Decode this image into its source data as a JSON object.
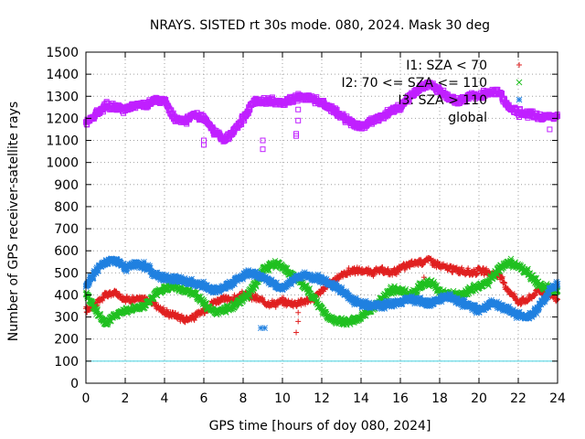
{
  "chart_data": {
    "type": "scatter",
    "title": "NRAYS. SISTED rt 30s mode. 080, 2024. Mask 30 deg",
    "xlabel": "GPS time [hours of doy 080, 2024]",
    "ylabel": "Number of GPS receiver-satellite rays",
    "xlim": [
      0,
      24
    ],
    "ylim": [
      0,
      1500
    ],
    "xticks": [
      "0",
      "2",
      "4",
      "6",
      "8",
      "10",
      "12",
      "14",
      "16",
      "18",
      "20",
      "22",
      "24"
    ],
    "yticks": [
      "0",
      "100",
      "200",
      "300",
      "400",
      "500",
      "600",
      "700",
      "800",
      "900",
      "1000",
      "1100",
      "1200",
      "1300",
      "1400",
      "1500"
    ],
    "grid": true,
    "legend_position": "top-right",
    "threshold_line": {
      "y": 100,
      "color": "#40d0e0"
    },
    "series": [
      {
        "name": "I1: SZA < 70",
        "marker": "+",
        "color": "#e02020",
        "x": [
          0,
          0.5,
          1,
          1.5,
          2,
          2.5,
          3,
          3.5,
          4,
          4.5,
          5,
          5.5,
          6,
          6.5,
          7,
          7.5,
          8,
          8.5,
          9,
          9.5,
          10,
          10.5,
          11,
          11.5,
          12,
          12.5,
          13,
          13.5,
          14,
          14.5,
          15,
          15.5,
          16,
          16.5,
          17,
          17.5,
          18,
          18.5,
          19,
          19.5,
          20,
          20.5,
          21,
          21.5,
          22,
          22.5,
          23,
          23.5,
          24
        ],
        "y": [
          330,
          360,
          400,
          410,
          380,
          380,
          380,
          360,
          320,
          310,
          290,
          300,
          330,
          370,
          380,
          380,
          400,
          390,
          370,
          360,
          370,
          360,
          370,
          380,
          420,
          460,
          490,
          510,
          510,
          500,
          510,
          500,
          520,
          540,
          550,
          560,
          530,
          520,
          510,
          500,
          510,
          500,
          490,
          420,
          370,
          380,
          420,
          410,
          380
        ]
      },
      {
        "name": "I2: 70 <= SZA <= 110",
        "marker": "x",
        "color": "#20c020",
        "x": [
          0,
          0.5,
          1,
          1.5,
          2,
          2.5,
          3,
          3.5,
          4,
          4.5,
          5,
          5.5,
          6,
          6.5,
          7,
          7.5,
          8,
          8.5,
          9,
          9.5,
          10,
          10.5,
          11,
          11.5,
          12,
          12.5,
          13,
          13.5,
          14,
          14.5,
          15,
          15.5,
          16,
          16.5,
          17,
          17.5,
          18,
          18.5,
          19,
          19.5,
          20,
          20.5,
          21,
          21.5,
          22,
          22.5,
          23,
          23.5,
          24
        ],
        "y": [
          410,
          330,
          270,
          310,
          330,
          340,
          350,
          400,
          430,
          440,
          420,
          410,
          360,
          320,
          330,
          350,
          380,
          430,
          510,
          540,
          530,
          490,
          450,
          400,
          330,
          290,
          280,
          280,
          300,
          330,
          380,
          420,
          420,
          400,
          440,
          460,
          410,
          400,
          400,
          420,
          440,
          460,
          520,
          550,
          530,
          500,
          450,
          430,
          420
        ]
      },
      {
        "name": "I3: SZA > 110",
        "marker": "*",
        "color": "#2080e0",
        "x": [
          0,
          0.5,
          1,
          1.5,
          2,
          2.5,
          3,
          3.5,
          4,
          4.5,
          5,
          5.5,
          6,
          6.5,
          7,
          7.5,
          8,
          8.5,
          9,
          9.5,
          10,
          10.5,
          11,
          11.5,
          12,
          12.5,
          13,
          13.5,
          14,
          14.5,
          15,
          15.5,
          16,
          16.5,
          17,
          17.5,
          18,
          18.5,
          19,
          19.5,
          20,
          20.5,
          21,
          21.5,
          22,
          22.5,
          23,
          23.5,
          24
        ],
        "y": [
          440,
          510,
          550,
          560,
          520,
          540,
          530,
          490,
          480,
          470,
          470,
          450,
          440,
          420,
          430,
          460,
          490,
          500,
          480,
          450,
          430,
          470,
          490,
          480,
          470,
          450,
          420,
          380,
          360,
          350,
          350,
          360,
          370,
          380,
          370,
          360,
          380,
          390,
          370,
          350,
          330,
          360,
          350,
          330,
          310,
          300,
          340,
          410,
          450
        ]
      },
      {
        "name": "global",
        "marker": "square",
        "color": "#c020ff",
        "x": [
          0,
          0.5,
          1,
          1.5,
          2,
          2.5,
          3,
          3.5,
          4,
          4.5,
          5,
          5.5,
          6,
          6.5,
          7,
          7.5,
          8,
          8.5,
          9,
          9.5,
          10,
          10.5,
          11,
          11.5,
          12,
          12.5,
          13,
          13.5,
          14,
          14.5,
          15,
          15.5,
          16,
          16.5,
          17,
          17.5,
          18,
          18.5,
          19,
          19.5,
          20,
          20.5,
          21,
          21.5,
          22,
          22.5,
          23,
          23.5,
          24
        ],
        "y": [
          1180,
          1220,
          1260,
          1250,
          1240,
          1260,
          1260,
          1280,
          1280,
          1200,
          1180,
          1220,
          1200,
          1140,
          1100,
          1140,
          1200,
          1270,
          1280,
          1280,
          1270,
          1290,
          1300,
          1290,
          1270,
          1240,
          1210,
          1180,
          1160,
          1190,
          1200,
          1230,
          1250,
          1300,
          1340,
          1360,
          1320,
          1290,
          1280,
          1300,
          1300,
          1320,
          1320,
          1250,
          1230,
          1220,
          1210,
          1210,
          1210
        ]
      }
    ],
    "outliers": [
      {
        "series": "I1: SZA < 70",
        "x": 10.7,
        "y": 230
      },
      {
        "series": "I1: SZA < 70",
        "x": 10.8,
        "y": 280
      },
      {
        "series": "I1: SZA < 70",
        "x": 10.8,
        "y": 320
      },
      {
        "series": "I1: SZA < 70",
        "x": 17.2,
        "y": 480
      },
      {
        "series": "I3: SZA > 110",
        "x": 8.9,
        "y": 250
      },
      {
        "series": "I3: SZA > 110",
        "x": 9.1,
        "y": 250
      },
      {
        "series": "global",
        "x": 6.0,
        "y": 1080
      },
      {
        "series": "global",
        "x": 6.0,
        "y": 1100
      },
      {
        "series": "global",
        "x": 9.0,
        "y": 1060
      },
      {
        "series": "global",
        "x": 9.0,
        "y": 1100
      },
      {
        "series": "global",
        "x": 10.7,
        "y": 1120
      },
      {
        "series": "global",
        "x": 10.7,
        "y": 1130
      },
      {
        "series": "global",
        "x": 10.8,
        "y": 1190
      },
      {
        "series": "global",
        "x": 10.8,
        "y": 1240
      },
      {
        "series": "global",
        "x": 23.6,
        "y": 1150
      }
    ]
  }
}
